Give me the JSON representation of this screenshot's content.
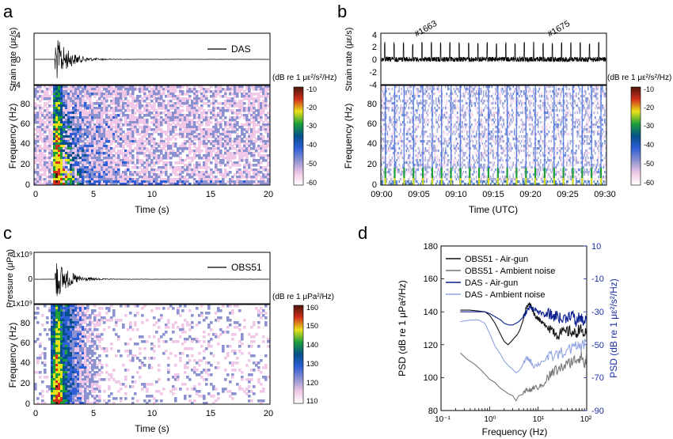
{
  "colors": {
    "obs_airgun": "#111111",
    "obs_ambient": "#777777",
    "das_airgun": "#0b1f8f",
    "das_ambient": "#8fa3e0",
    "right_axis": "#1a2fa8",
    "colormap": [
      "#ffffff",
      "#f0c7e6",
      "#8c91cf",
      "#2f5fd6",
      "#05508a",
      "#1c9e3a",
      "#e8e21a",
      "#d22f1d",
      "#4a1508"
    ]
  },
  "panels": {
    "a": {
      "letter": "a",
      "trace_ylabel": "Strain rate (με/s)",
      "trace_ticks": [
        "4",
        "0",
        "-4"
      ],
      "legend": "DAS",
      "spec_ylabel": "Frequency (Hz)",
      "spec_yticks": [
        "80",
        "60",
        "40",
        "20",
        "0"
      ],
      "xticks": [
        "0",
        "5",
        "10",
        "15",
        "20"
      ],
      "xlabel": "Time (s)",
      "cbar_title": "(dB re 1 με²/s²/Hz)",
      "cbar_ticks": [
        "-10",
        "-20",
        "-30",
        "-40",
        "-50",
        "-60"
      ]
    },
    "b": {
      "letter": "b",
      "trace_ylabel": "Strain rate (με/s)",
      "trace_ticks": [
        "4",
        "2",
        "0",
        "-2",
        "-4"
      ],
      "shot_labels": [
        "#1663",
        "#1675"
      ],
      "spec_ylabel": "Frequency (Hz)",
      "spec_yticks": [
        "80",
        "60",
        "40",
        "20",
        "0"
      ],
      "xticks": [
        "09:00",
        "09:05",
        "09:10",
        "09:15",
        "09:20",
        "09:25",
        "09:30"
      ],
      "xlabel": "Time (UTC)",
      "cbar_title": "(dB re 1 με²/s²/Hz)",
      "cbar_ticks": [
        "-10",
        "-20",
        "-30",
        "-40",
        "-50",
        "-60"
      ]
    },
    "c": {
      "letter": "c",
      "trace_ylabel": "Pressure (μPa)",
      "trace_ticks": [
        "1x10⁹",
        "0",
        "-1x10⁹"
      ],
      "legend": "OBS51",
      "spec_ylabel": "Frequency (Hz)",
      "spec_yticks": [
        "80",
        "60",
        "40",
        "20",
        "0"
      ],
      "xticks": [
        "0",
        "5",
        "10",
        "15",
        "20"
      ],
      "xlabel": "Time (s)",
      "cbar_title": "(dB re 1 μPa²/Hz)",
      "cbar_ticks": [
        "160",
        "150",
        "140",
        "130",
        "120",
        "110"
      ]
    },
    "d": {
      "letter": "d",
      "ylabel_left": "PSD (dB re 1 μPa²/Hz)",
      "ylabel_right": "PSD (dB re 1 με²/s²/Hz)",
      "left_ticks": [
        "180",
        "160",
        "140",
        "120",
        "100",
        "80"
      ],
      "right_ticks": [
        "10",
        "-10",
        "-30",
        "-50",
        "-70",
        "-90"
      ],
      "xlabel": "Frequency (Hz)",
      "xticks": [
        "10⁻¹",
        "10⁰",
        "10¹",
        "10²"
      ]
    }
  },
  "chart_data": [
    {
      "type": "line",
      "panel": "a (top)",
      "series": [
        {
          "name": "DAS",
          "note_peak_time_s": 1.9
        }
      ],
      "x_range": [
        0,
        20
      ],
      "ylim": [
        -4,
        4
      ]
    },
    {
      "type": "heatmap",
      "panel": "a (bottom)",
      "xlabel": "Time (s)",
      "ylabel": "Frequency (Hz)",
      "x_range": [
        0,
        20
      ],
      "y_range": [
        0,
        100
      ],
      "color_range_db": [
        -60,
        -10
      ],
      "energy_onset_s": 1.7
    },
    {
      "type": "line",
      "panel": "b (top)",
      "x_range_utc": [
        "09:00",
        "09:30"
      ],
      "ylim": [
        -4,
        4
      ],
      "shot_interval_s": 75,
      "labeled_shots": [
        {
          "label": "#1663",
          "time_utc": "09:04"
        },
        {
          "label": "#1675",
          "time_utc": "09:19"
        }
      ]
    },
    {
      "type": "heatmap",
      "panel": "b (bottom)",
      "xlabel": "Time (UTC)",
      "ylabel": "Frequency (Hz)",
      "y_range": [
        0,
        100
      ],
      "color_range_db": [
        -60,
        -10
      ]
    },
    {
      "type": "line",
      "panel": "c (top)",
      "series": [
        {
          "name": "OBS51"
        }
      ],
      "x_range": [
        0,
        20
      ],
      "ylim": [
        -1000000000,
        1000000000
      ]
    },
    {
      "type": "heatmap",
      "panel": "c (bottom)",
      "xlabel": "Time (s)",
      "ylabel": "Frequency (Hz)",
      "x_range": [
        0,
        20
      ],
      "y_range": [
        0,
        100
      ],
      "color_range_db": [
        110,
        160
      ]
    },
    {
      "type": "line",
      "panel": "d",
      "xscale": "log",
      "xlim": [
        0.1,
        100
      ],
      "ylim_left": [
        80,
        180
      ],
      "ylim_right": [
        -90,
        10
      ],
      "series": [
        {
          "name": "OBS51 - Air-gun",
          "axis": "left",
          "x": [
            0.25,
            0.4,
            0.6,
            0.8,
            1,
            1.3,
            1.7,
            2,
            2.4,
            2.8,
            3.2,
            3.7,
            4.2,
            4.8,
            5.5,
            6.2,
            6.8,
            7.5,
            8.5,
            10,
            12,
            15,
            20,
            25,
            30,
            40,
            50,
            60,
            70,
            80,
            100
          ],
          "y": [
            141,
            141,
            140.5,
            140,
            138,
            133,
            126,
            122,
            120,
            122,
            124,
            126,
            129,
            134,
            141,
            144,
            145,
            142,
            138,
            136,
            133,
            132,
            129,
            126,
            127,
            128,
            128,
            126,
            130,
            128,
            126
          ]
        },
        {
          "name": "OBS51 - Ambient noise",
          "axis": "left",
          "x": [
            0.25,
            0.35,
            0.5,
            0.7,
            1,
            1.3,
            1.6,
            2,
            2.5,
            3,
            3.5,
            4,
            5,
            6,
            7,
            8,
            10,
            13,
            17,
            20,
            30,
            40,
            50,
            60,
            70,
            80,
            90,
            100
          ],
          "y": [
            115,
            111,
            108,
            104,
            99,
            97,
            94,
            92,
            90,
            89,
            86,
            89,
            90,
            93,
            92,
            94,
            94,
            96,
            101,
            103,
            106,
            108,
            110,
            111,
            112,
            113,
            107,
            113
          ]
        },
        {
          "name": "DAS - Air-gun",
          "axis": "right",
          "x": [
            0.25,
            0.4,
            0.6,
            0.8,
            1,
            1.3,
            1.7,
            2,
            2.5,
            3,
            3.5,
            4,
            5,
            6,
            7,
            8,
            10,
            13,
            17,
            20,
            25,
            30,
            40,
            50,
            60,
            70,
            80,
            100
          ],
          "y": [
            -30,
            -30,
            -30,
            -30,
            -31,
            -33,
            -35,
            -37,
            -38,
            -38,
            -37,
            -36,
            -33,
            -29,
            -27,
            -28,
            -30,
            -32,
            -31,
            -33,
            -32,
            -35,
            -33,
            -31,
            -37,
            -33,
            -35,
            -36
          ]
        },
        {
          "name": "DAS - Ambient noise",
          "axis": "right",
          "x": [
            0.25,
            0.4,
            0.6,
            0.8,
            1,
            1.3,
            1.7,
            2,
            2.5,
            3,
            3.5,
            4,
            4.5,
            5,
            6,
            7,
            8,
            10,
            15,
            20,
            30,
            50,
            70,
            100
          ],
          "y": [
            -36,
            -35,
            -35,
            -37,
            -43,
            -51,
            -56,
            -60,
            -63,
            -65,
            -67,
            -66,
            -64,
            -61,
            -58,
            -60,
            -63,
            -62,
            -58,
            -57,
            -55,
            -52,
            -51,
            -49
          ]
        }
      ]
    }
  ]
}
